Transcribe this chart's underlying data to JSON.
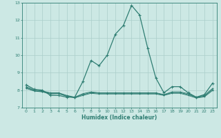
{
  "x": [
    0,
    1,
    2,
    3,
    4,
    5,
    6,
    7,
    8,
    9,
    10,
    11,
    12,
    13,
    14,
    15,
    16,
    17,
    18,
    19,
    20,
    21,
    22,
    23
  ],
  "line_main": [
    8.3,
    8.05,
    8.0,
    7.7,
    7.7,
    7.6,
    7.6,
    8.5,
    9.7,
    9.4,
    10.0,
    11.2,
    11.7,
    12.85,
    12.3,
    10.4,
    8.7,
    7.85,
    8.2,
    8.2,
    7.85,
    7.6,
    7.75,
    8.4
  ],
  "line2": [
    8.2,
    8.0,
    7.95,
    7.85,
    7.85,
    7.7,
    7.6,
    7.8,
    7.9,
    7.85,
    7.85,
    7.85,
    7.85,
    7.85,
    7.85,
    7.85,
    7.85,
    7.75,
    7.9,
    7.9,
    7.8,
    7.6,
    7.7,
    8.1
  ],
  "line3": [
    8.1,
    7.95,
    7.9,
    7.78,
    7.8,
    7.65,
    7.56,
    7.7,
    7.82,
    7.78,
    7.78,
    7.78,
    7.78,
    7.78,
    7.78,
    7.78,
    7.78,
    7.7,
    7.82,
    7.82,
    7.7,
    7.55,
    7.62,
    7.98
  ],
  "line4": [
    8.15,
    7.97,
    7.92,
    7.82,
    7.82,
    7.67,
    7.58,
    7.75,
    7.86,
    7.82,
    7.82,
    7.82,
    7.82,
    7.82,
    7.82,
    7.82,
    7.82,
    7.72,
    7.86,
    7.86,
    7.75,
    7.58,
    7.66,
    8.04
  ],
  "line_color": "#2e7d72",
  "bg_color": "#cce8e4",
  "grid_color": "#aaceca",
  "xlabel": "Humidex (Indice chaleur)",
  "ylim": [
    7,
    13
  ],
  "xlim": [
    -0.5,
    23.5
  ],
  "yticks": [
    7,
    8,
    9,
    10,
    11,
    12,
    13
  ],
  "xticks": [
    0,
    1,
    2,
    3,
    4,
    5,
    6,
    7,
    8,
    9,
    10,
    11,
    12,
    13,
    14,
    15,
    16,
    17,
    18,
    19,
    20,
    21,
    22,
    23
  ]
}
